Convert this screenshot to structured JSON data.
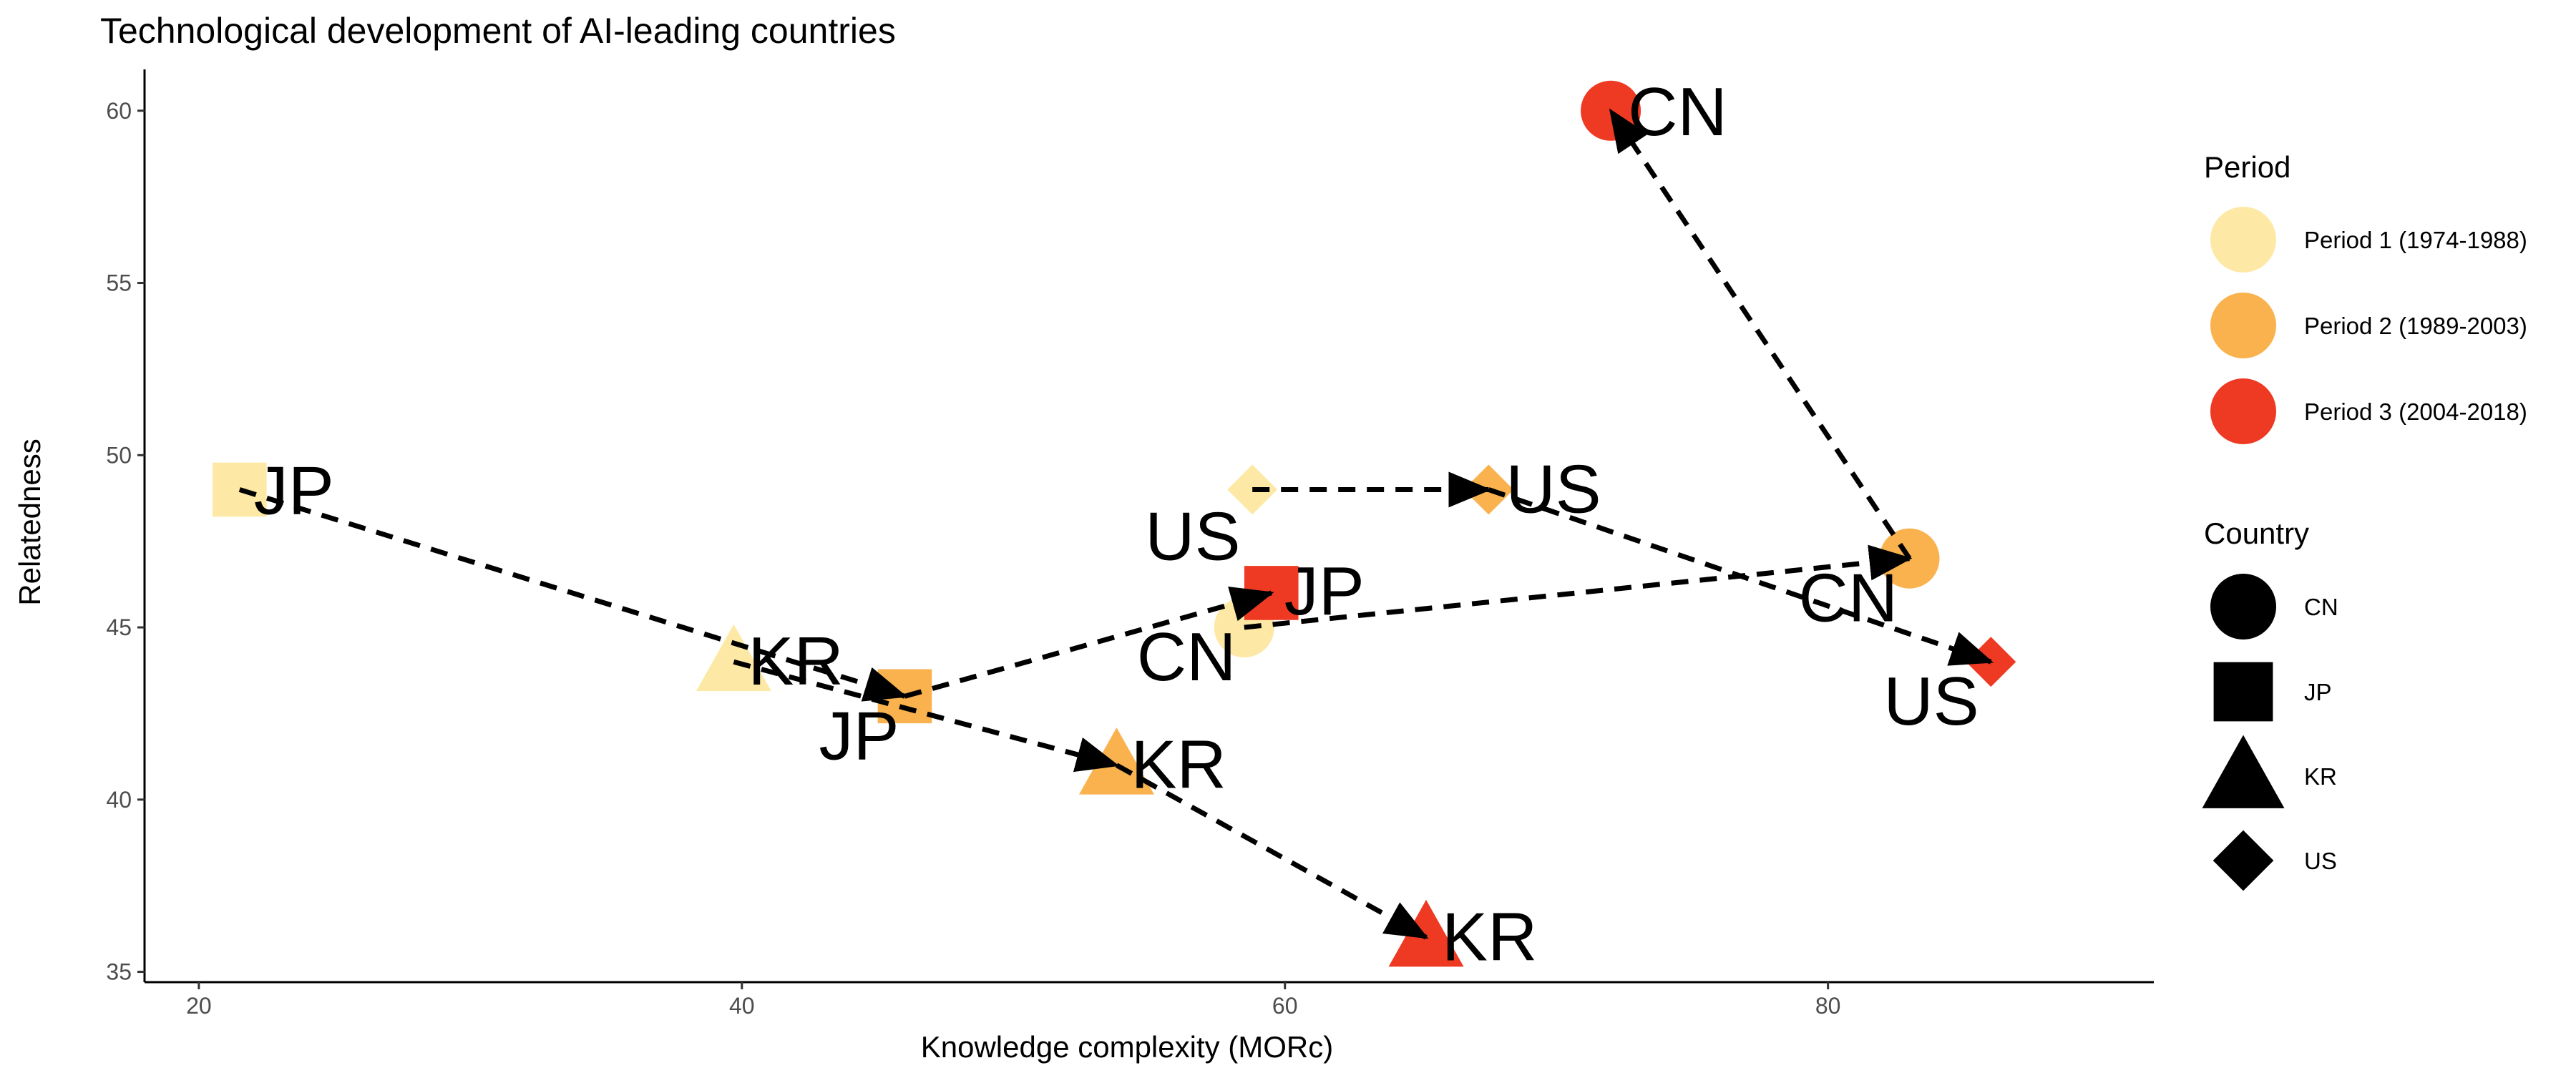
{
  "chart_data": {
    "type": "scatter",
    "title": "Technological development of AI-leading countries",
    "xlabel": "Knowledge complexity (MORc)",
    "ylabel": "Relatedness",
    "xlim": [
      18,
      92
    ],
    "ylim": [
      34.7,
      61.2
    ],
    "xticks": [
      20,
      40,
      60,
      80
    ],
    "yticks": [
      35,
      40,
      45,
      50,
      55,
      60
    ],
    "grid": false,
    "legend_placement": "right",
    "period_legend_title": "Period",
    "country_legend_title": "Country",
    "periods": [
      {
        "key": "p1",
        "name": "Period 1 (1974-1988)",
        "color": "#FDE9A5"
      },
      {
        "key": "p2",
        "name": "Period 2 (1989-2003)",
        "color": "#F9B24D"
      },
      {
        "key": "p3",
        "name": "Period 3 (2004-2018)",
        "color": "#EE3A23"
      }
    ],
    "countries": [
      {
        "key": "CN",
        "name": "CN",
        "shape": "circle"
      },
      {
        "key": "JP",
        "name": "JP",
        "shape": "square"
      },
      {
        "key": "KR",
        "name": "KR",
        "shape": "triangle"
      },
      {
        "key": "US",
        "name": "US",
        "shape": "diamond"
      }
    ],
    "points": [
      {
        "country": "CN",
        "period": "p1",
        "x": 58.5,
        "y": 45.0,
        "label": "CN"
      },
      {
        "country": "CN",
        "period": "p2",
        "x": 83.0,
        "y": 47.0,
        "label": "CN"
      },
      {
        "country": "CN",
        "period": "p3",
        "x": 72.0,
        "y": 60.0,
        "label": "CN"
      },
      {
        "country": "JP",
        "period": "p1",
        "x": 21.5,
        "y": 49.0,
        "label": "JP"
      },
      {
        "country": "JP",
        "period": "p2",
        "x": 46.0,
        "y": 43.0,
        "label": "JP"
      },
      {
        "country": "JP",
        "period": "p3",
        "x": 59.5,
        "y": 46.0,
        "label": "JP"
      },
      {
        "country": "KR",
        "period": "p1",
        "x": 39.7,
        "y": 44.0,
        "label": "KR"
      },
      {
        "country": "KR",
        "period": "p2",
        "x": 53.8,
        "y": 41.0,
        "label": "KR"
      },
      {
        "country": "KR",
        "period": "p3",
        "x": 65.2,
        "y": 36.0,
        "label": "KR"
      },
      {
        "country": "US",
        "period": "p1",
        "x": 58.8,
        "y": 49.0,
        "label": "US"
      },
      {
        "country": "US",
        "period": "p2",
        "x": 67.5,
        "y": 49.0,
        "label": "US"
      },
      {
        "country": "US",
        "period": "p3",
        "x": 86.0,
        "y": 44.0,
        "label": "US"
      }
    ]
  }
}
